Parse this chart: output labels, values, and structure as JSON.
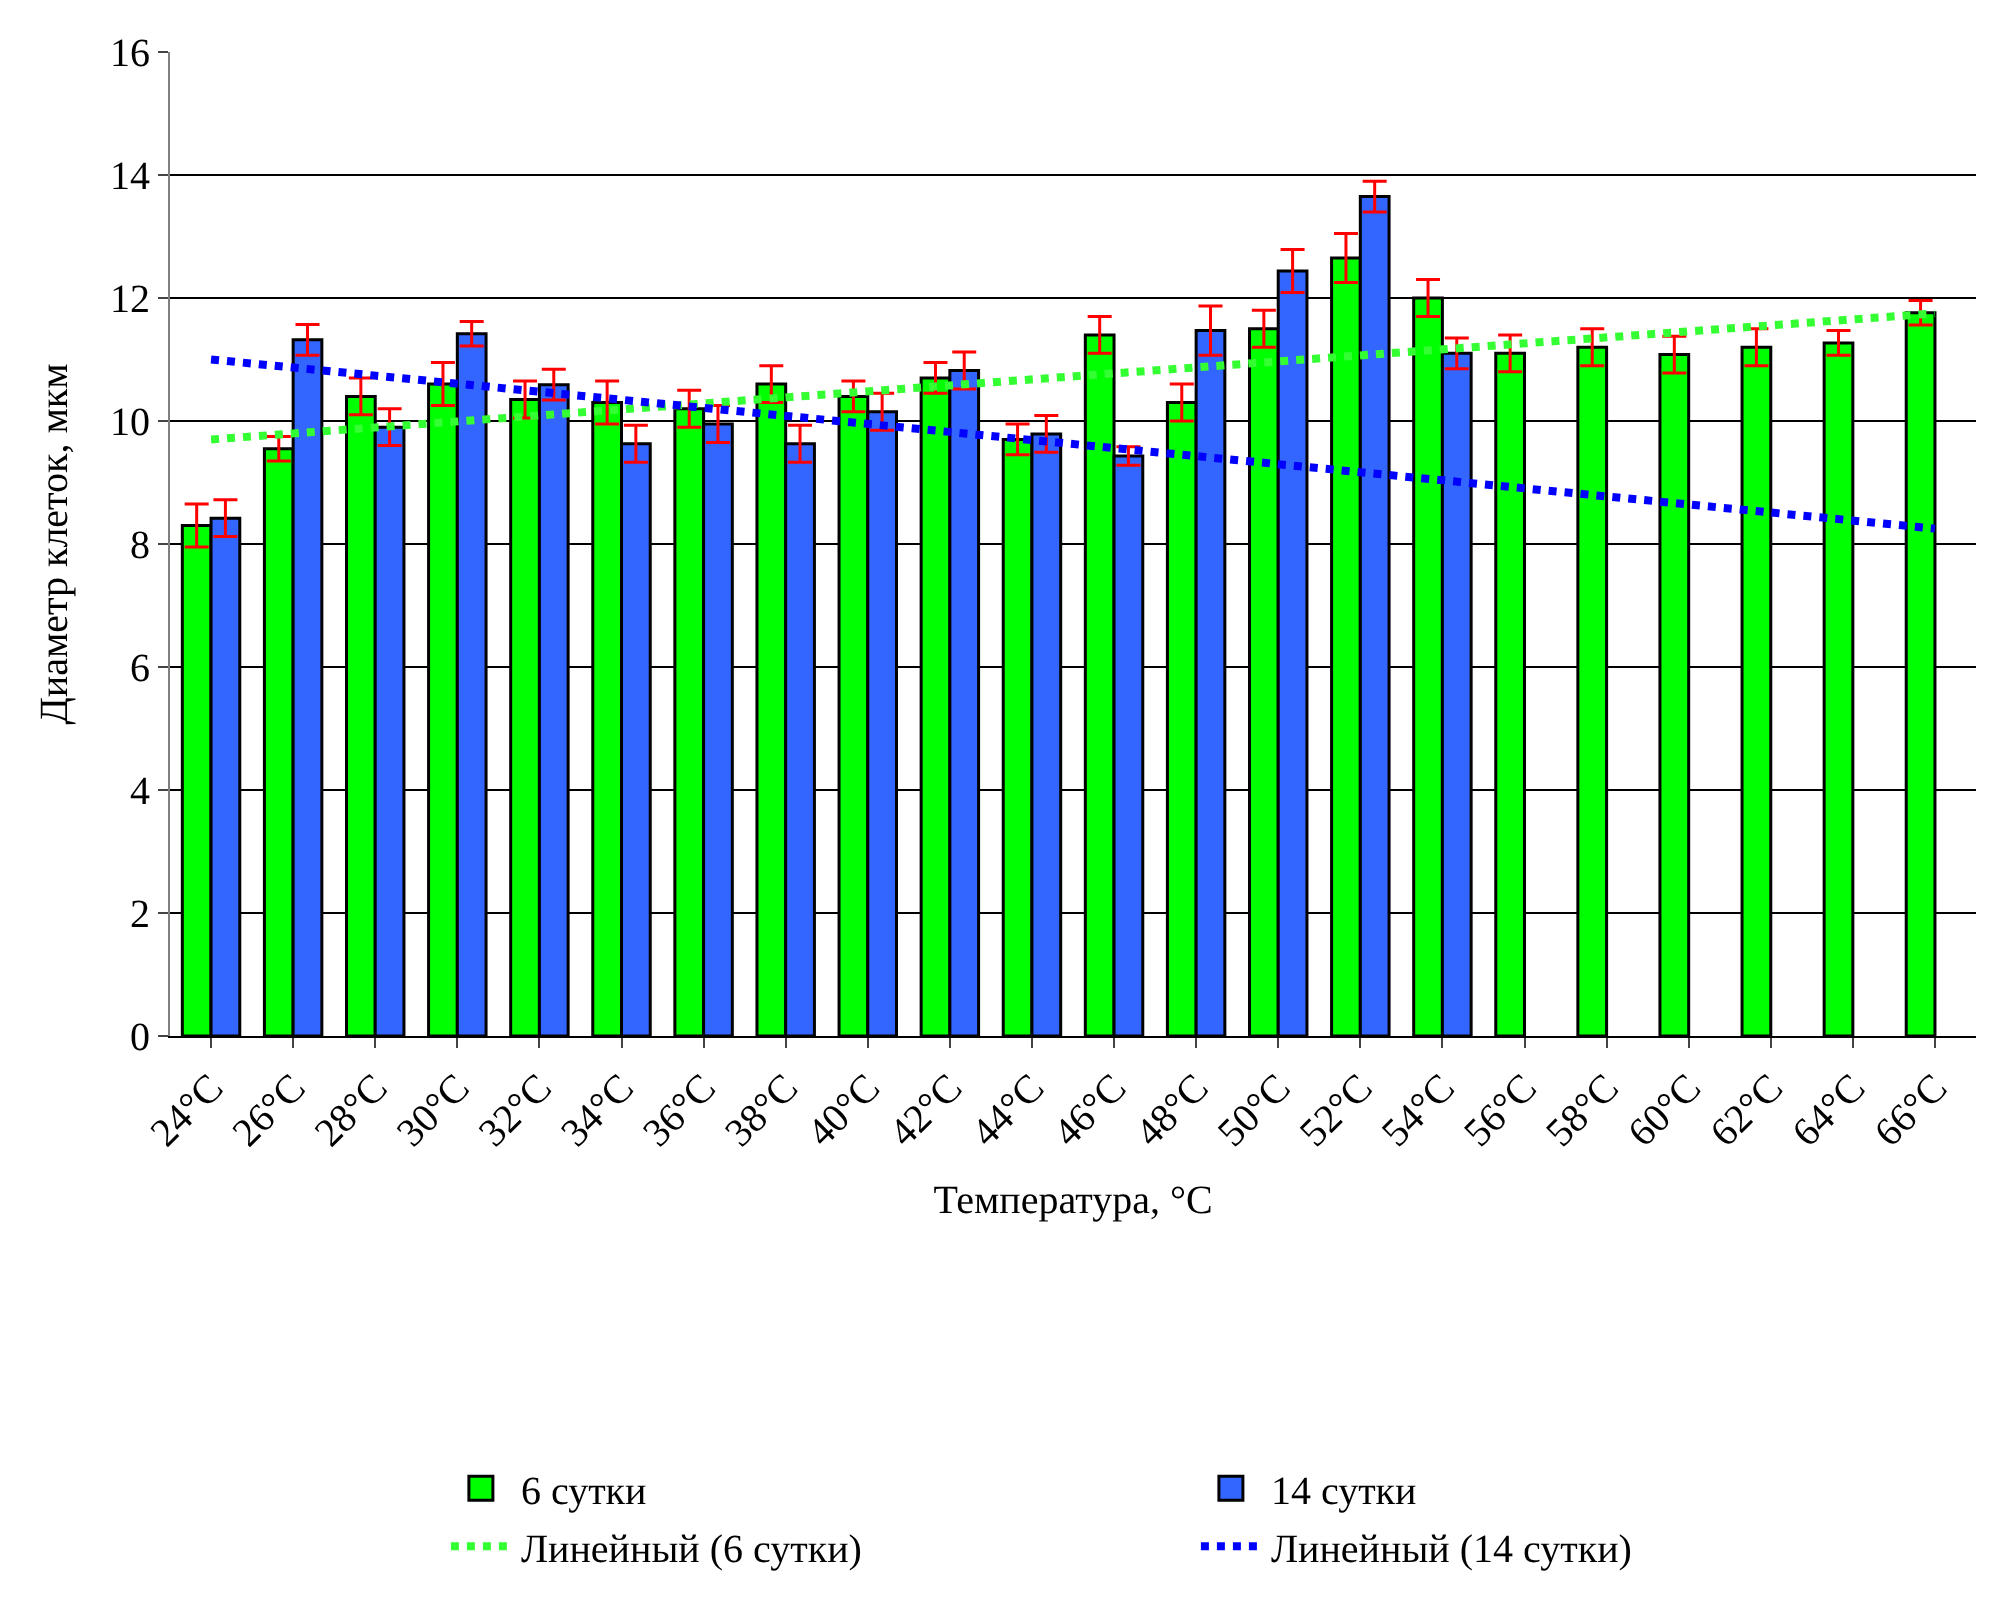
{
  "chart_data": {
    "type": "bar",
    "xlabel": "Температура, °C",
    "ylabel": "Диаметр клеток, мкм",
    "categories": [
      "24°C",
      "26°C",
      "28°C",
      "30°C",
      "32°C",
      "34°C",
      "36°C",
      "38°C",
      "40°C",
      "42°C",
      "44°C",
      "46°C",
      "48°C",
      "50°C",
      "52°C",
      "54°C",
      "56°C",
      "58°C",
      "60°C",
      "62°C",
      "64°C",
      "66°C"
    ],
    "series": [
      {
        "name": "6 сутки",
        "color": "#00ff00",
        "values": [
          8.3,
          9.55,
          10.4,
          10.6,
          10.35,
          10.3,
          10.2,
          10.6,
          10.4,
          10.7,
          9.7,
          11.4,
          10.3,
          11.5,
          12.65,
          12.0,
          11.1,
          11.2,
          11.08,
          11.2,
          11.27,
          11.76
        ],
        "errors": [
          0.35,
          0.2,
          0.3,
          0.35,
          0.3,
          0.35,
          0.3,
          0.3,
          0.25,
          0.25,
          0.25,
          0.3,
          0.3,
          0.3,
          0.4,
          0.3,
          0.3,
          0.3,
          0.3,
          0.3,
          0.2,
          0.2
        ]
      },
      {
        "name": "14 сутки",
        "color": "#3366ff",
        "values": [
          8.42,
          11.32,
          9.9,
          11.42,
          10.59,
          9.63,
          9.95,
          9.63,
          10.15,
          10.82,
          9.79,
          9.43,
          11.47,
          12.44,
          13.65,
          11.1,
          null,
          null,
          null,
          null,
          null,
          null
        ],
        "errors": [
          0.3,
          0.25,
          0.3,
          0.2,
          0.25,
          0.3,
          0.3,
          0.3,
          0.3,
          0.3,
          0.3,
          0.15,
          0.4,
          0.35,
          0.25,
          0.25,
          null,
          null,
          null,
          null,
          null,
          null
        ]
      },
      {
        "name": "Линейный (6 сутки)",
        "type": "line",
        "line_style": "dotted",
        "color": "#33ff33",
        "x": [
          "24°C",
          "66°C"
        ],
        "values": [
          9.7,
          11.75
        ]
      },
      {
        "name": "Линейный (14 сутки)",
        "type": "line",
        "line_style": "dotted",
        "color": "#0000ff",
        "x": [
          "24°C",
          "66°C"
        ],
        "values": [
          11.0,
          8.25
        ]
      }
    ],
    "ylim": [
      0,
      16
    ],
    "yticks": [
      0,
      2,
      4,
      6,
      8,
      10,
      12,
      14,
      16
    ],
    "grid": "y",
    "legend": "bottom"
  }
}
